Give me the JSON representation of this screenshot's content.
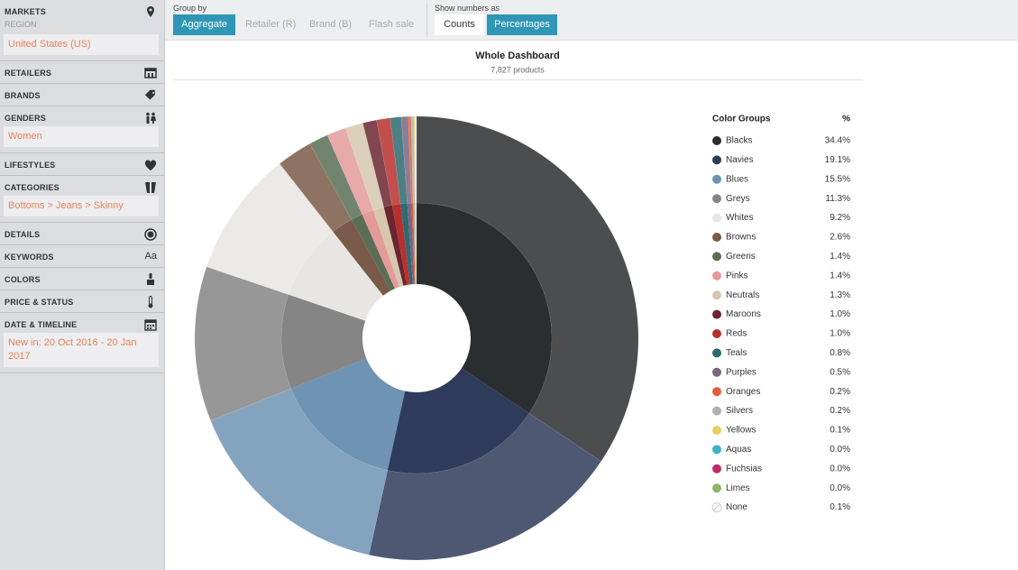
{
  "sidebar": {
    "sections": [
      {
        "title": "MARKETS",
        "icon": "pin",
        "sublabel": "REGION",
        "value": "United States (US)"
      },
      {
        "title": "RETAILERS",
        "icon": "store"
      },
      {
        "title": "BRANDS",
        "icon": "tag"
      },
      {
        "title": "GENDERS",
        "icon": "people",
        "value": "Women"
      },
      {
        "title": "LIFESTYLES",
        "icon": "heart"
      },
      {
        "title": "CATEGORIES",
        "icon": "jeans",
        "value": "Bottoms > Jeans > Skinny"
      },
      {
        "title": "DETAILS",
        "icon": "button"
      },
      {
        "title": "KEYWORDS",
        "icon_text": "Aa"
      },
      {
        "title": "COLORS",
        "icon": "brush"
      },
      {
        "title": "PRICE & STATUS",
        "icon": "thermo"
      },
      {
        "title": "DATE & TIMELINE",
        "icon": "calendar",
        "value": "New in: 20 Oct 2016 - 20 Jan 2017"
      }
    ]
  },
  "toolbar": {
    "group_by": {
      "label": "Group by",
      "buttons": [
        "Aggregate",
        "Retailer (R)",
        "Brand (B)",
        "Flash sale"
      ],
      "active": 0
    },
    "show_numbers": {
      "label": "Show numbers as",
      "buttons": [
        "Counts",
        "Percentages"
      ],
      "active": 1
    }
  },
  "dashboard": {
    "title": "Whole Dashboard",
    "subtitle": "7,827 products"
  },
  "legend": {
    "header": [
      "Color Groups",
      "%"
    ],
    "names": [
      "Blacks",
      "Navies",
      "Blues",
      "Greys",
      "Whites",
      "Browns",
      "Greens",
      "Pinks",
      "Neutrals",
      "Maroons",
      "Reds",
      "Teals",
      "Purples",
      "Oranges",
      "Silvers",
      "Yellows",
      "Aquas",
      "Fuchsias",
      "Limes",
      "None"
    ],
    "colors": [
      "#2b2e30",
      "#2f3b5a",
      "#6f93b3",
      "#858585",
      "#e8e6e2",
      "#7a5a48",
      "#5b6e55",
      "#e49a9a",
      "#d6c7ae",
      "#6b2631",
      "#b8302e",
      "#2e6a6f",
      "#7b6682",
      "#e0603a",
      "#b0b0b0",
      "#e8cf5a",
      "#3fb4c4",
      "#c42a6a",
      "#8fb46a",
      "#eeeeee"
    ],
    "values": [
      34.4,
      19.1,
      15.5,
      11.3,
      9.2,
      2.6,
      1.4,
      1.4,
      1.3,
      1.0,
      1.0,
      0.8,
      0.5,
      0.2,
      0.2,
      0.1,
      0.0,
      0.0,
      0.0,
      0.1
    ],
    "value_labels": [
      "34.4%",
      "19.1%",
      "15.5%",
      "11.3%",
      "9.2%",
      "2.6%",
      "1.4%",
      "1.4%",
      "1.3%",
      "1.0%",
      "1.0%",
      "0.8%",
      "0.5%",
      "0.2%",
      "0.2%",
      "0.1%",
      "0.0%",
      "0.0%",
      "0.0%",
      "0.1%"
    ]
  }
}
